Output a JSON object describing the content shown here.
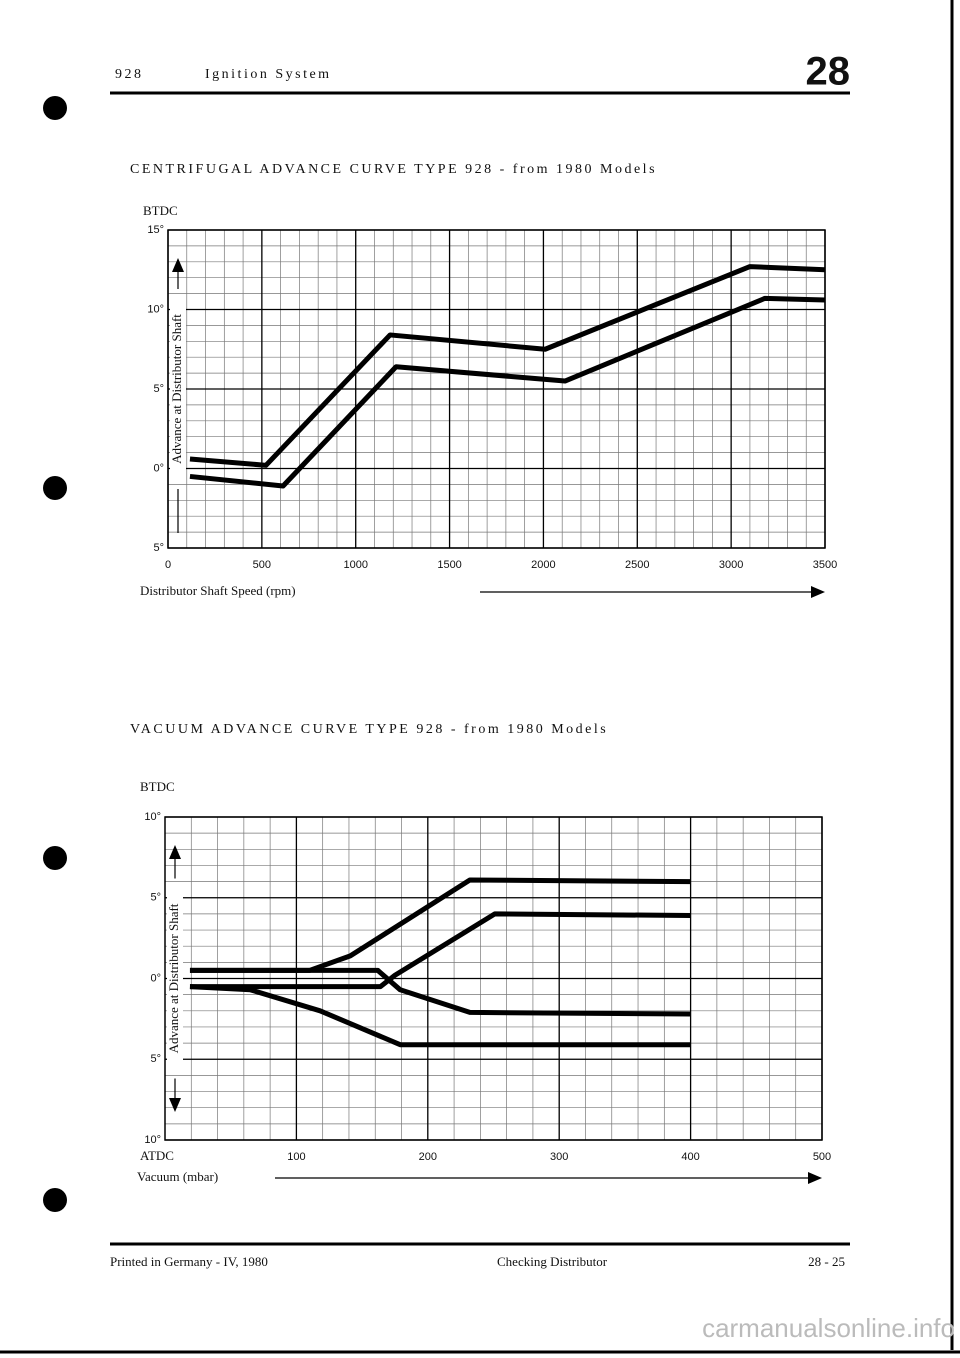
{
  "header": {
    "model": "928",
    "section": "Ignition System",
    "group": "28"
  },
  "chart_data": [
    {
      "type": "line",
      "title": "CENTRIFUGAL ADVANCE CURVE TYPE 928 - from 1980 Models",
      "y_top_label": "BTDC",
      "ylabel": "Advance at Distributor Shaft",
      "xlabel": "Distributor Shaft Speed (rpm)",
      "xlim": [
        0,
        3500
      ],
      "xticks": [
        0,
        500,
        1000,
        1500,
        2000,
        2500,
        3000,
        3500
      ],
      "ylim": [
        -5,
        15
      ],
      "yticks": [
        {
          "value": -5,
          "label": "5°"
        },
        {
          "value": 0,
          "label": "0°"
        },
        {
          "value": 5,
          "label": "5°"
        },
        {
          "value": 10,
          "label": "10°"
        },
        {
          "value": 15,
          "label": "15°"
        }
      ],
      "grid": true,
      "series": [
        {
          "color": "#000000",
          "x": [
            117,
            522,
            1183,
            2009,
            3100,
            3500
          ],
          "values": [
            0.6,
            0.2,
            8.4,
            7.5,
            12.7,
            12.5
          ]
        },
        {
          "color": "#000000",
          "x": [
            117,
            613,
            1215,
            2115,
            3180,
            3500
          ],
          "values": [
            -0.5,
            -1.1,
            6.4,
            5.5,
            10.7,
            10.6
          ]
        }
      ]
    },
    {
      "type": "line",
      "title": "VACUUM ADVANCE CURVE TYPE 928 - from 1980 Models",
      "y_top_label": "BTDC",
      "y_bottom_label": "ATDC",
      "ylabel": "Advance at Distributor Shaft",
      "xlabel": "Vacuum (mbar)",
      "xlim": [
        0,
        500
      ],
      "xticks": [
        100,
        200,
        300,
        400,
        500
      ],
      "ylim": [
        -10,
        10
      ],
      "yticks": [
        {
          "value": -10,
          "label": "10°"
        },
        {
          "value": -5,
          "label": "5°"
        },
        {
          "value": 0,
          "label": "0°"
        },
        {
          "value": 5,
          "label": "5°"
        },
        {
          "value": 10,
          "label": "10°"
        }
      ],
      "grid": true,
      "series": [
        {
          "color": "#000000",
          "x": [
            19,
            110,
            141,
            232,
            400
          ],
          "values": [
            0.5,
            0.5,
            1.4,
            6.1,
            6.0
          ]
        },
        {
          "color": "#000000",
          "x": [
            19,
            164,
            175,
            251,
            400
          ],
          "values": [
            -0.5,
            -0.5,
            0.2,
            4.0,
            3.9
          ]
        },
        {
          "color": "#000000",
          "x": [
            19,
            162,
            179,
            232,
            400
          ],
          "values": [
            0.5,
            0.5,
            -0.7,
            -2.1,
            -2.2
          ]
        },
        {
          "color": "#000000",
          "x": [
            19,
            65,
            118,
            179,
            400
          ],
          "values": [
            -0.5,
            -0.7,
            -2.0,
            -4.1,
            -4.1
          ]
        }
      ]
    }
  ],
  "footer": {
    "printed": "Printed in Germany - IV, 1980",
    "chapter": "Checking Distributor",
    "page": "28 - 25"
  },
  "watermark": "carmanualsonline.info"
}
